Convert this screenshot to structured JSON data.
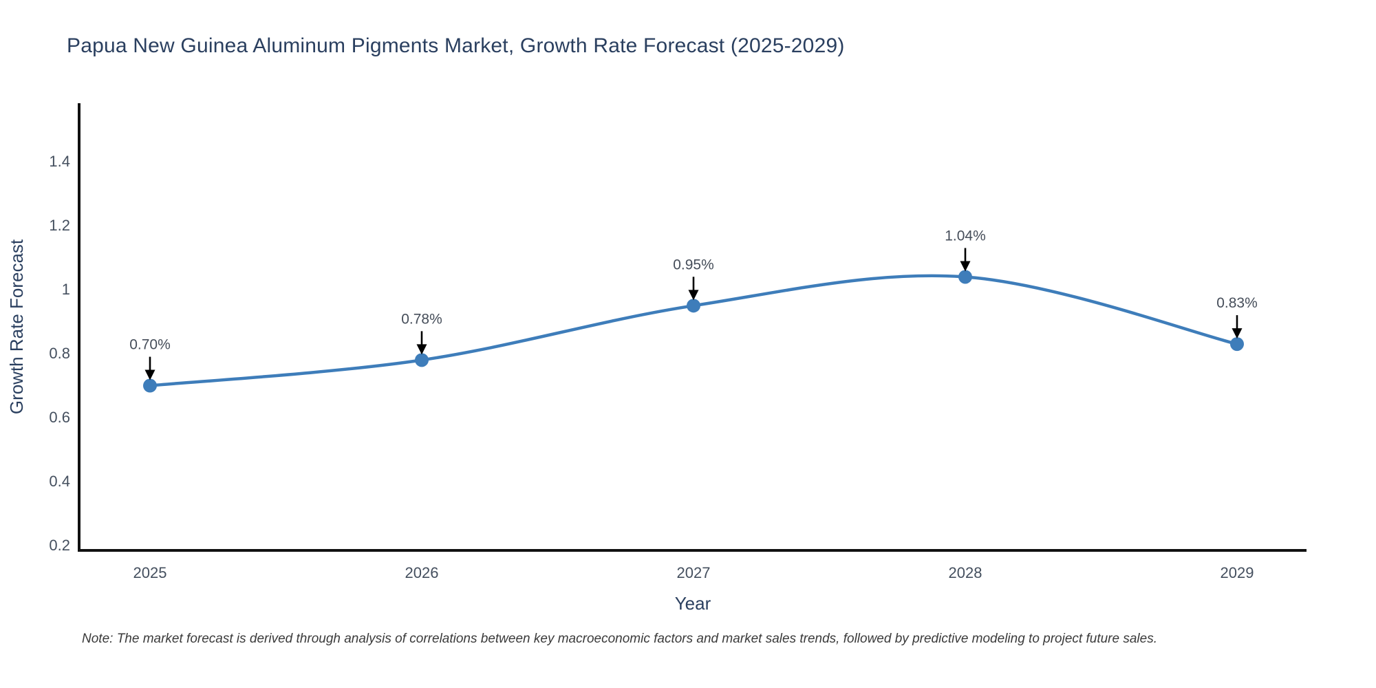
{
  "title": "Papua New Guinea Aluminum Pigments Market, Growth Rate Forecast (2025-2029)",
  "note": "Note: The market forecast is derived through analysis of correlations between key macroeconomic factors and market sales trends, followed by predictive modeling to project future sales.",
  "chart_data": {
    "type": "line",
    "title": "Papua New Guinea Aluminum Pigments Market, Growth Rate Forecast (2025-2029)",
    "xlabel": "Year",
    "ylabel": "Growth Rate Forecast",
    "x": [
      2025,
      2026,
      2027,
      2028,
      2029
    ],
    "y": [
      0.7,
      0.78,
      0.95,
      1.04,
      0.83
    ],
    "point_labels": [
      "0.70%",
      "0.78%",
      "0.95%",
      "1.04%",
      "0.83%"
    ],
    "xtick_labels": [
      "2025",
      "2026",
      "2027",
      "2028",
      "2029"
    ],
    "yticks": [
      0.2,
      0.4,
      0.6,
      0.8,
      1,
      1.2,
      1.4
    ],
    "ytick_labels": [
      "0.2",
      "0.4",
      "0.6",
      "0.8",
      "1",
      "1.2",
      "1.4"
    ],
    "ylim": [
      0.185,
      1.583
    ],
    "line_shape": "spline",
    "grid": false,
    "legend_position": "none",
    "colors": {
      "line": "#3e7dba",
      "marker": "#3e7dba",
      "axis": "#111111",
      "tick_label": "#444f5e",
      "axis_title": "#2a3f5f",
      "annotation_text": "#454d59",
      "annotation_arrow": "#000000",
      "background": "#ffffff"
    }
  }
}
